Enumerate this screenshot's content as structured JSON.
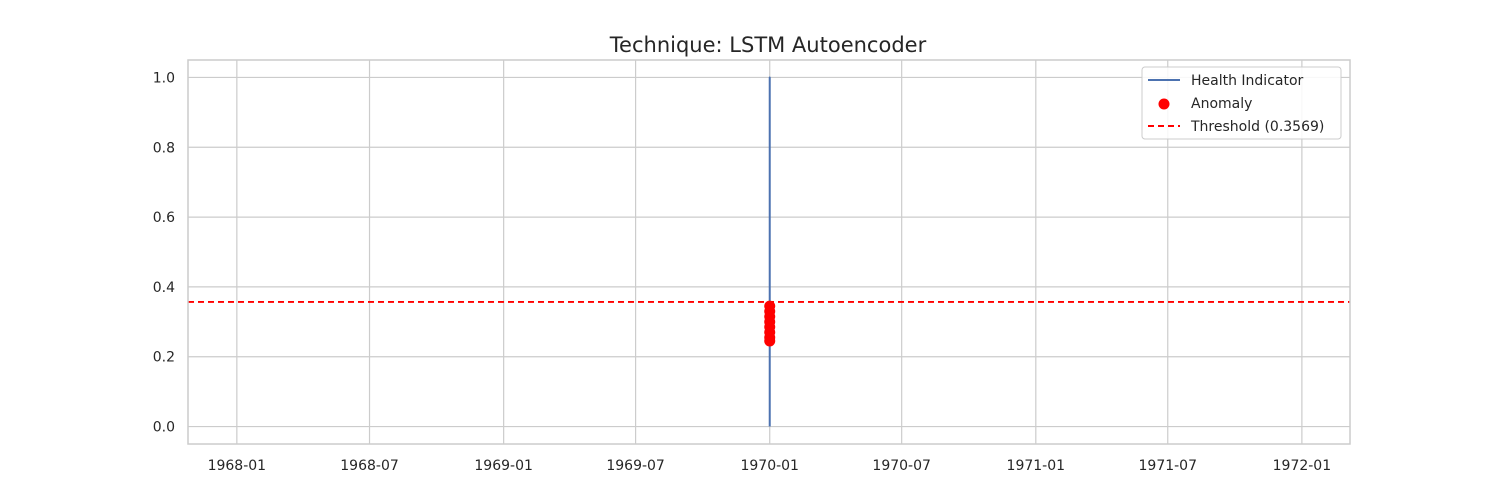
{
  "chart_data": {
    "type": "line",
    "title": "Technique: LSTM Autoencoder",
    "xlabel": "",
    "ylabel": "",
    "x_ticks": [
      "1968-01",
      "1968-07",
      "1969-01",
      "1969-07",
      "1970-01",
      "1970-07",
      "1971-01",
      "1971-07",
      "1972-01"
    ],
    "y_ticks": [
      "0.0",
      "0.2",
      "0.4",
      "0.6",
      "0.8",
      "1.0"
    ],
    "xlim": [
      "1967-10-26",
      "1972-03-07"
    ],
    "ylim": [
      -0.05,
      1.05
    ],
    "grid": true,
    "legend_position": "top-right",
    "series": [
      {
        "name": "Health Indicator",
        "kind": "line",
        "color": "#4c72b0",
        "x": [
          "1970-01-01",
          "1970-01-01",
          "1970-01-01",
          "1970-01-01",
          "1970-01-01",
          "1970-01-01",
          "1970-01-01",
          "1970-01-01"
        ],
        "y": [
          0.0,
          0.25,
          0.35,
          0.54,
          0.87,
          1.0,
          0.6,
          0.3
        ]
      },
      {
        "name": "Anomaly",
        "kind": "scatter",
        "color": "#ff0000",
        "x": [
          "1970-01-01",
          "1970-01-01",
          "1970-01-01",
          "1970-01-01",
          "1970-01-01",
          "1970-01-01",
          "1970-01-01",
          "1970-01-01"
        ],
        "y": [
          0.245,
          0.255,
          0.27,
          0.285,
          0.3,
          0.315,
          0.33,
          0.345
        ]
      }
    ],
    "threshold": {
      "name": "Threshold (0.3569)",
      "value": 0.3569,
      "color": "#ff0000",
      "style": "dashed"
    }
  }
}
